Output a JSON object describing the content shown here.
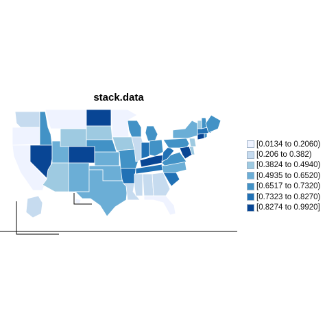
{
  "title": "stack.data",
  "palette": [
    "#eff3ff",
    "#c6dbef",
    "#9ecae1",
    "#6baed6",
    "#4292c6",
    "#2171b5",
    "#084594"
  ],
  "legend": [
    {
      "label": "[0.0134 to 0.2060)",
      "bin": 0
    },
    {
      "label": "[0.206 to 0.382)",
      "bin": 1
    },
    {
      "label": "[0.3824 to 0.4940)",
      "bin": 2
    },
    {
      "label": "[0.4935 to 0.6520)",
      "bin": 3
    },
    {
      "label": "[0.6517 to 0.7320)",
      "bin": 4
    },
    {
      "label": "[0.7323 to 0.8270)",
      "bin": 5
    },
    {
      "label": "[0.8274 to 0.9920]",
      "bin": 6
    }
  ],
  "states": {
    "WA": 1,
    "OR": 0,
    "CA": 0,
    "ID": 4,
    "NV": 6,
    "MT": 0,
    "WY": 2,
    "UT": 3,
    "AZ": 2,
    "CO": 6,
    "NM": 3,
    "ND": 6,
    "SD": 2,
    "NE": 4,
    "KS": 3,
    "OK": 3,
    "TX": 3,
    "MN": 0,
    "IA": 2,
    "MO": 4,
    "AR": 5,
    "LA": 1,
    "WI": 4,
    "IL": 1,
    "MI": 4,
    "IN": 5,
    "OH": 4,
    "KY": 6,
    "TN": 5,
    "MS": 1,
    "AL": 1,
    "GA": 1,
    "FL": 0,
    "SC": 5,
    "NC": 3,
    "VA": 4,
    "WV": 5,
    "PA": 4,
    "NY": 3,
    "ME": 4,
    "VT": 2,
    "NH": 4,
    "MA": 5,
    "CT": 6,
    "RI": 4,
    "NJ": 2,
    "DE": 2,
    "MD": 6,
    "AK": 1,
    "HI": 0
  }
}
